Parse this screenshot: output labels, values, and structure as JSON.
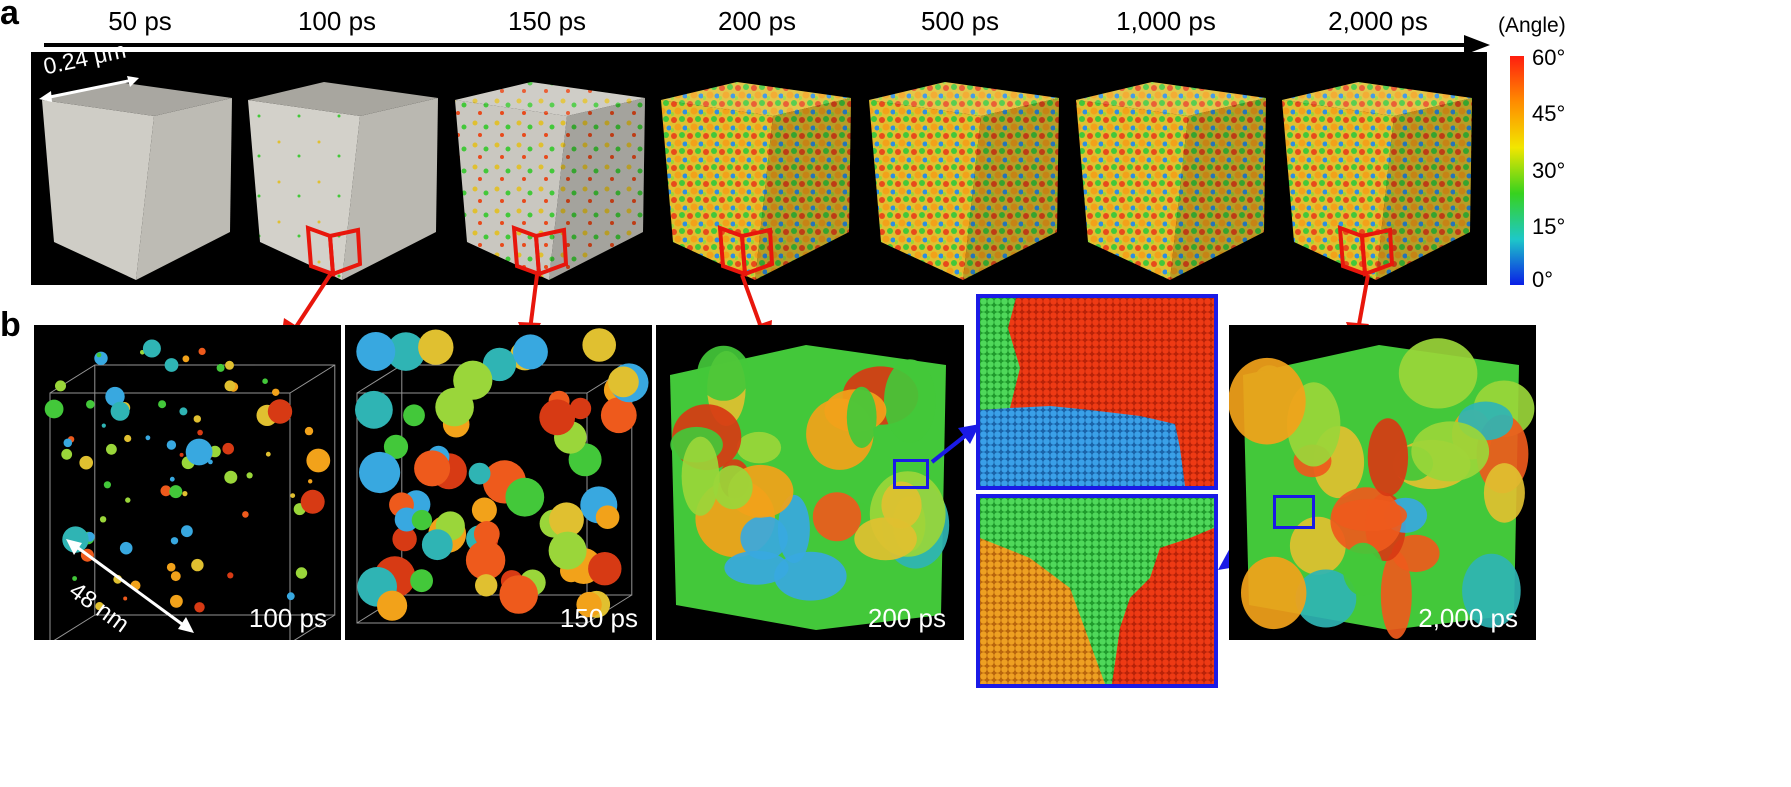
{
  "panel_a": {
    "letter": "a",
    "time_labels": [
      "50 ps",
      "100 ps",
      "150 ps",
      "200 ps",
      "500 ps",
      "1,000 ps",
      "2,000 ps"
    ],
    "scale_bar": "0.24 μm"
  },
  "panel_b": {
    "letter": "b",
    "tile_labels": [
      "100 ps",
      "150 ps",
      "200 ps",
      "2,000 ps"
    ],
    "scale_bar": "48 nm"
  },
  "colorbar": {
    "title": "(Angle)",
    "ticks": [
      "60°",
      "45°",
      "30°",
      "15°",
      "0°"
    ],
    "colors": [
      "#ff1e0f",
      "#ff8c00",
      "#f2e600",
      "#37d21e",
      "#1ec8c8",
      "#0a1ee6"
    ]
  }
}
